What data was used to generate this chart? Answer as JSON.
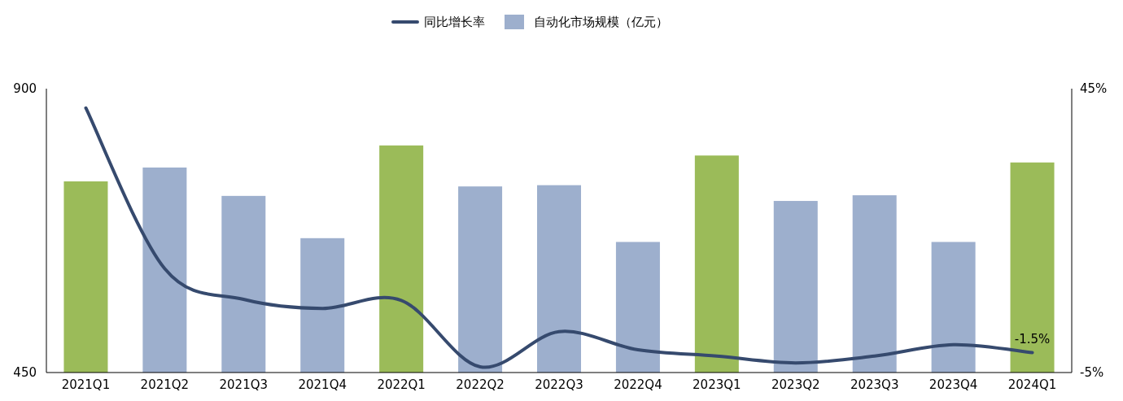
{
  "chart_data": {
    "type": "bar",
    "categories": [
      "2021Q1",
      "2021Q2",
      "2021Q3",
      "2021Q4",
      "2022Q1",
      "2022Q2",
      "2022Q3",
      "2022Q4",
      "2023Q1",
      "2023Q2",
      "2023Q3",
      "2023Q4",
      "2024Q1"
    ],
    "series": [
      {
        "name": "同比增长率",
        "type": "line",
        "axis": "y2",
        "color": "#364a6e",
        "values": [
          41.6,
          13.3,
          7.9,
          6.3,
          7.7,
          -4.0,
          2.2,
          -1.0,
          -2.1,
          -3.3,
          -2.1,
          -0.1,
          -1.5
        ],
        "value_labels": [
          null,
          null,
          null,
          null,
          null,
          null,
          null,
          null,
          null,
          null,
          null,
          null,
          "-1.5%"
        ]
      },
      {
        "name": "自动化市场规模（亿元）",
        "color": "#9dafcd",
        "colors": [
          "#9bbb59",
          "#9dafcd",
          "#9dafcd",
          "#9dafcd",
          "#9bbb59",
          "#9dafcd",
          "#9dafcd",
          "#9dafcd",
          "#9bbb59",
          "#9dafcd",
          "#9dafcd",
          "#9dafcd",
          "#9bbb59"
        ],
        "values": [
          753,
          775,
          730,
          663,
          810,
          745,
          747,
          657,
          794,
          722,
          731,
          657,
          783
        ]
      }
    ],
    "ylim": [
      450,
      900
    ],
    "yticks": [
      450,
      900
    ],
    "y2lim": [
      -5,
      45
    ],
    "y2ticks": [
      {
        "value": -5,
        "label": "-5%"
      },
      {
        "value": 45,
        "label": "45%"
      }
    ],
    "grid": false,
    "legend": "top",
    "marker": "none",
    "line_style": "solid"
  }
}
